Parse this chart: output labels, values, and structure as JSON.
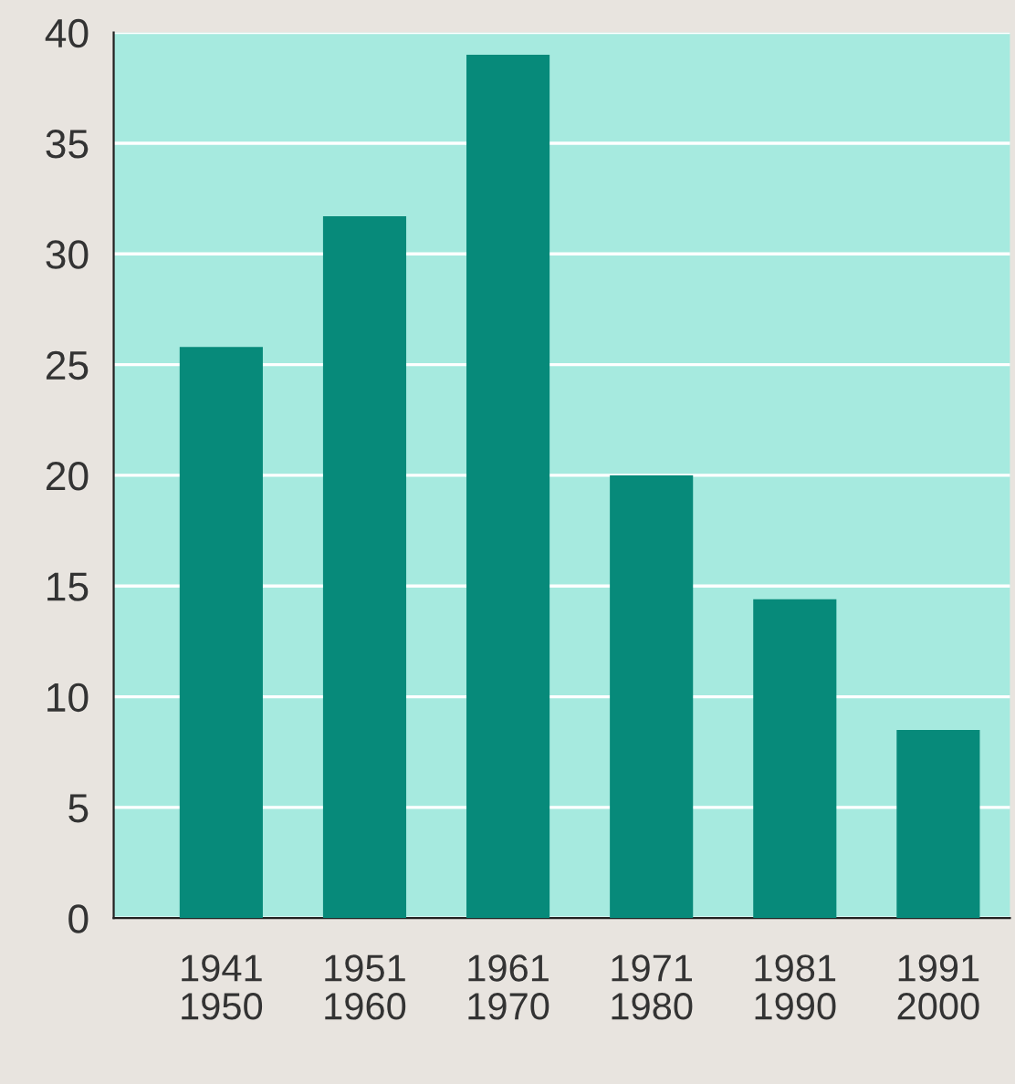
{
  "chart_data": {
    "type": "bar",
    "categories": [
      "1941\n1950",
      "1951\n1960",
      "1961\n1970",
      "1971\n1980",
      "1981\n1990",
      "1991\n2000"
    ],
    "values": [
      25.8,
      31.7,
      39.0,
      20.0,
      14.4,
      8.5
    ],
    "color": "#078a7a",
    "ylim": [
      0,
      40
    ],
    "yticks": [
      0,
      5,
      10,
      15,
      20,
      25,
      30,
      35,
      40
    ],
    "grid": "y"
  }
}
